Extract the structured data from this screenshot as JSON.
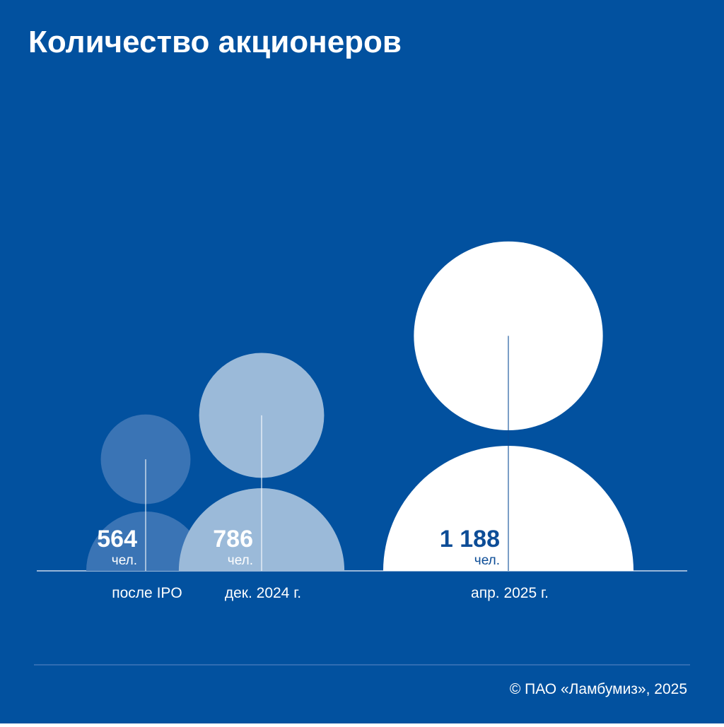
{
  "chart_data": {
    "type": "pictogram",
    "title": "Количество акционеров",
    "categories": [
      "после IPO",
      "дек. 2024 г.",
      "апр. 2025 г."
    ],
    "values": [
      564,
      786,
      1188
    ],
    "value_labels": [
      "564",
      "786",
      "1 188"
    ],
    "unit": "чел.",
    "colors": [
      "#3a74b5",
      "#9bbad9",
      "#ffffff"
    ],
    "label_colors": [
      "#ffffff",
      "#ffffff",
      "#0d4d97"
    ],
    "background": "#02519f",
    "footer": "© ПАО «Ламбумиз», 2025"
  }
}
